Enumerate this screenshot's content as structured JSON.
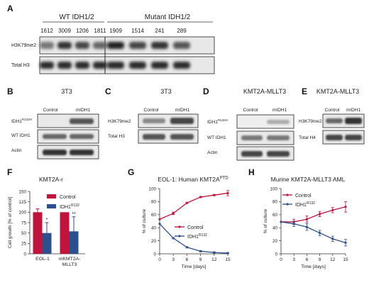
{
  "panels": {
    "A": {
      "letter": "A",
      "group_wt": "WT IDH1/2",
      "group_mut": "Mutant IDH1/2",
      "samples": [
        "1612",
        "3009",
        "1206",
        "1811",
        "1909",
        "1514",
        "241",
        "289"
      ],
      "row1": "H3K79me2",
      "row2": "Total H3"
    },
    "B": {
      "letter": "B",
      "title": "3T3",
      "col1": "Control",
      "col2": "mIDH1",
      "row1_main": "IDH1",
      "row1_sup": "R132H",
      "row2": "WT IDH1",
      "row3": "Actin"
    },
    "C": {
      "letter": "C",
      "title": "3T3",
      "col1": "Control",
      "col2": "mIDH1",
      "row1": "H3K79me2",
      "row2": "Total H3"
    },
    "D": {
      "letter": "D",
      "title": "KMT2A-MLLT3",
      "col1": "Control",
      "col2": "mIDH1",
      "row1_main": "IDH1",
      "row1_sup": "R132H",
      "row2": "WT IDH1",
      "row3": "Actin"
    },
    "E": {
      "letter": "E",
      "title": "KMT2A-MLLT3",
      "col1": "Control",
      "col2": "mIDH1",
      "row1": "H3K79me2",
      "row2": "Total H4"
    },
    "F": {
      "letter": "F"
    },
    "G": {
      "letter": "G"
    },
    "H": {
      "letter": "H"
    }
  },
  "chart_data": [
    {
      "id": "F",
      "type": "bar",
      "title": "KMT2A-r",
      "ylabel": "Cell growth [% of control]",
      "ylim": [
        0,
        150
      ],
      "yticks": [
        0,
        25,
        50,
        75,
        100,
        125,
        150
      ],
      "categories": [
        "EOL-1",
        "mKMT2A-MLLT3"
      ],
      "category_lines": [
        [
          "EOL-1"
        ],
        [
          "mKMT2A-",
          "MLLT3"
        ]
      ],
      "legend": [
        {
          "name_main": "Control",
          "name_sup": "",
          "color": "#c0143c"
        },
        {
          "name_main": "IDH1",
          "name_sup": "R132",
          "color": "#2d4f8e"
        }
      ],
      "series": [
        {
          "name": "Control",
          "values": [
            100,
            100
          ],
          "errors": [
            8,
            0
          ],
          "color": "#c0143c"
        },
        {
          "name": "IDH1R132",
          "values": [
            50,
            54
          ],
          "errors": [
            25,
            35
          ],
          "color": "#2d4f8e"
        }
      ],
      "significance": [
        "*",
        "**"
      ]
    },
    {
      "id": "G",
      "type": "line",
      "title_main": "EOL-1: Human KMT2A",
      "title_sup": "PTD",
      "xlabel": "Time [days]",
      "ylabel": "% of culture",
      "xlim": [
        0,
        15
      ],
      "ylim": [
        0,
        100
      ],
      "xticks": [
        0,
        3,
        6,
        9,
        12,
        15
      ],
      "yticks": [
        0,
        20,
        40,
        60,
        80,
        100
      ],
      "legend": [
        {
          "name_main": "Control",
          "name_sup": "",
          "color": "#c0143c"
        },
        {
          "name_main": "IDH1",
          "name_sup": "R132",
          "color": "#2d4f8e"
        }
      ],
      "x": [
        0,
        3,
        6,
        9,
        12,
        15
      ],
      "series": [
        {
          "name": "Control",
          "color": "#c0143c",
          "values": [
            53,
            62,
            78,
            87,
            90,
            93
          ],
          "errors": [
            0,
            2,
            1,
            1,
            1,
            4
          ]
        },
        {
          "name": "IDH1R132",
          "color": "#2d4f8e",
          "values": [
            46,
            24,
            10,
            4,
            2,
            1
          ],
          "errors": [
            0,
            1,
            1,
            1,
            1,
            1
          ]
        }
      ]
    },
    {
      "id": "H",
      "type": "line",
      "title": "Murine KMT2A-MLLT3 AML",
      "xlabel": "Time [days]",
      "ylabel": "% of culture",
      "xlim": [
        0,
        15
      ],
      "ylim": [
        0,
        100
      ],
      "xticks": [
        0,
        3,
        6,
        9,
        12,
        15
      ],
      "yticks": [
        0,
        20,
        40,
        60,
        80,
        100
      ],
      "legend": [
        {
          "name_main": "Control",
          "name_sup": "",
          "color": "#c0143c"
        },
        {
          "name_main": "IDH1",
          "name_sup": "R132",
          "color": "#2d4f8e"
        }
      ],
      "x": [
        0,
        3,
        6,
        9,
        12,
        15
      ],
      "series": [
        {
          "name": "Control",
          "color": "#c0143c",
          "values": [
            49,
            49,
            53,
            61,
            67,
            72
          ],
          "errors": [
            0,
            4,
            5,
            4,
            4,
            8
          ]
        },
        {
          "name": "IDH1R132",
          "color": "#2d4f8e",
          "values": [
            49,
            46,
            41,
            32,
            23,
            17
          ],
          "errors": [
            0,
            4,
            5,
            4,
            4,
            5
          ]
        }
      ]
    }
  ]
}
